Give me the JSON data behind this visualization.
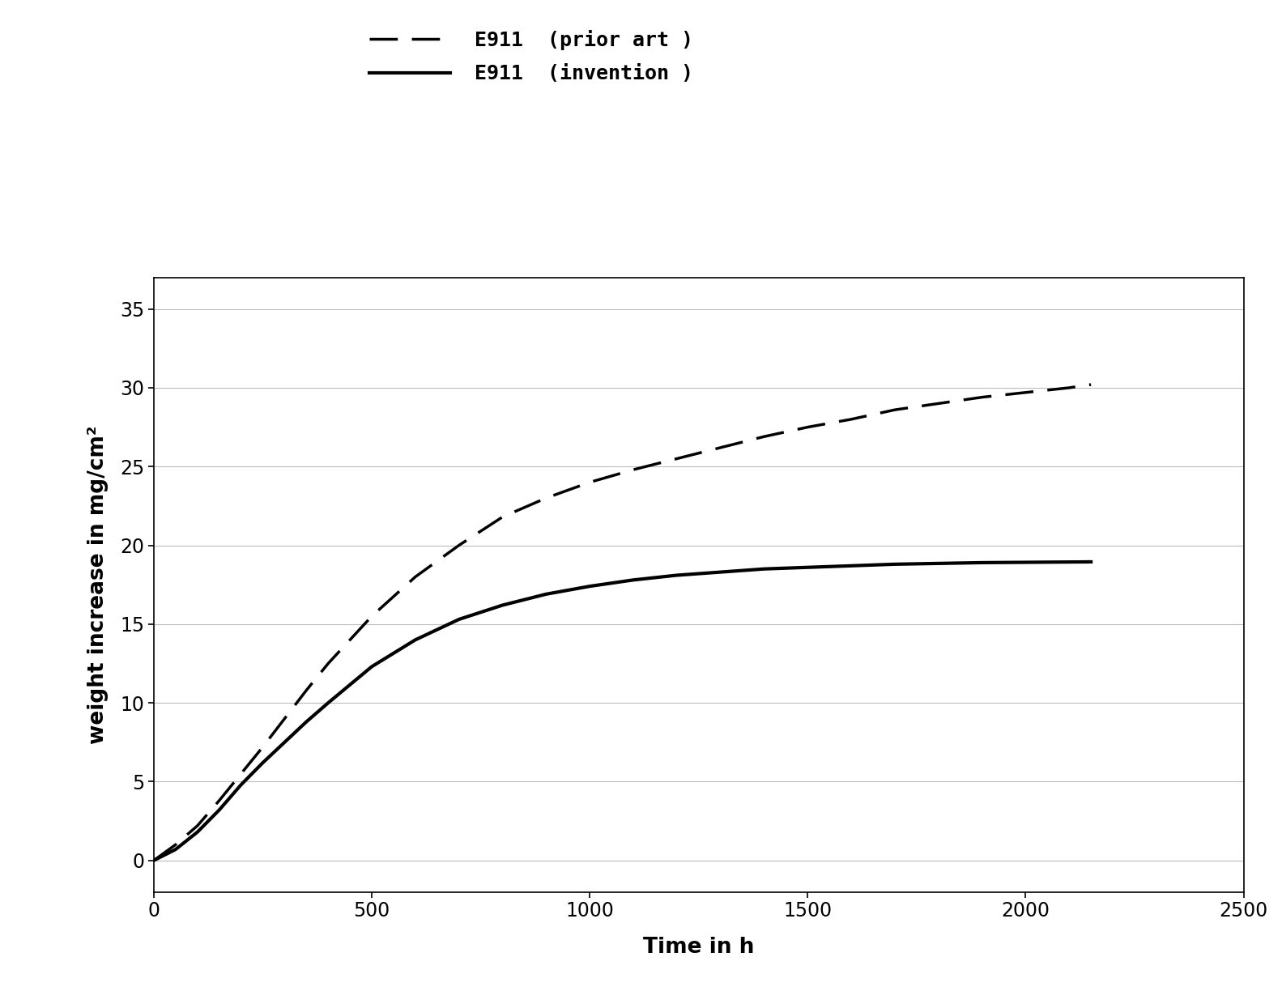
{
  "title": "",
  "xlabel": "Time in h",
  "ylabel": "weight increase in mg/cm²",
  "xlim": [
    0,
    2500
  ],
  "ylim": [
    -2,
    37
  ],
  "xticks": [
    0,
    500,
    1000,
    1500,
    2000,
    2500
  ],
  "yticks": [
    0,
    5,
    10,
    15,
    20,
    25,
    30,
    35
  ],
  "legend_labels": [
    "E911  (prior art )",
    "E911  (invention )"
  ],
  "line_color": "#000000",
  "bg_color": "#ffffff",
  "prior_art_x": [
    0,
    50,
    100,
    150,
    200,
    250,
    300,
    350,
    400,
    500,
    600,
    700,
    800,
    900,
    1000,
    1100,
    1200,
    1300,
    1400,
    1500,
    1600,
    1700,
    1800,
    1900,
    2000,
    2100,
    2150
  ],
  "prior_art_y": [
    0,
    1.0,
    2.2,
    3.8,
    5.5,
    7.2,
    9.0,
    10.8,
    12.5,
    15.5,
    18.0,
    20.0,
    21.8,
    23.0,
    24.0,
    24.8,
    25.5,
    26.2,
    26.9,
    27.5,
    28.0,
    28.6,
    29.0,
    29.4,
    29.7,
    30.0,
    30.2
  ],
  "invention_x": [
    0,
    50,
    100,
    150,
    200,
    250,
    300,
    350,
    400,
    500,
    600,
    700,
    800,
    900,
    1000,
    1100,
    1200,
    1300,
    1400,
    1500,
    1600,
    1700,
    1800,
    1900,
    2000,
    2100,
    2150
  ],
  "invention_y": [
    0,
    0.7,
    1.8,
    3.2,
    4.8,
    6.2,
    7.5,
    8.8,
    10.0,
    12.3,
    14.0,
    15.3,
    16.2,
    16.9,
    17.4,
    17.8,
    18.1,
    18.3,
    18.5,
    18.6,
    18.7,
    18.8,
    18.85,
    18.9,
    18.92,
    18.94,
    18.95
  ],
  "legend_fontsize": 18,
  "axis_fontsize": 19,
  "tick_fontsize": 17
}
